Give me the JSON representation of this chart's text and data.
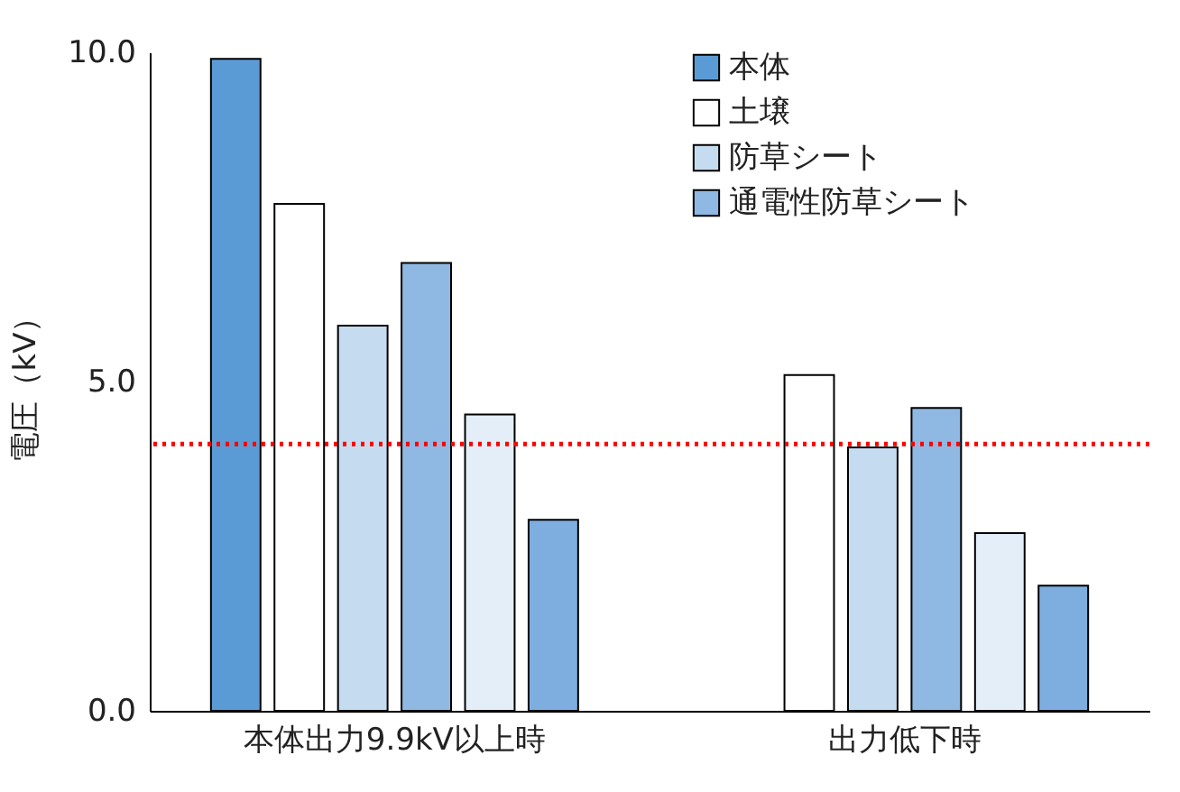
{
  "chart_data": {
    "type": "bar",
    "ylabel": "電圧（kV）",
    "categories": [
      "本体出力9.9kV以上時",
      "出力低下時"
    ],
    "series": [
      {
        "name": "本体",
        "color": "#5b9bd5",
        "values": [
          9.9,
          null
        ]
      },
      {
        "name": "土壌",
        "color": "#ffffff",
        "values": [
          7.7,
          5.1
        ]
      },
      {
        "name": "防草シート",
        "color": "#c5dcf0",
        "values": [
          5.85,
          4.0
        ]
      },
      {
        "name": "通電性防草シート",
        "color": "#8fb8e3",
        "values": [
          6.8,
          4.6
        ]
      },
      {
        "color": "#e4eef9",
        "values": [
          4.5,
          2.7
        ]
      },
      {
        "color": "#7eaee0",
        "values": [
          2.9,
          1.9
        ]
      }
    ],
    "ylim": [
      0,
      10
    ],
    "yticks": [
      {
        "value": 0,
        "label": "0.0"
      },
      {
        "value": 5,
        "label": "5.0"
      },
      {
        "value": 10,
        "label": "10.0"
      }
    ],
    "ref_lines": [
      {
        "axis": "y",
        "value": 4.05,
        "color": "#ff0000",
        "line_style": "dotted"
      }
    ],
    "grid": false,
    "legend": "top right"
  }
}
